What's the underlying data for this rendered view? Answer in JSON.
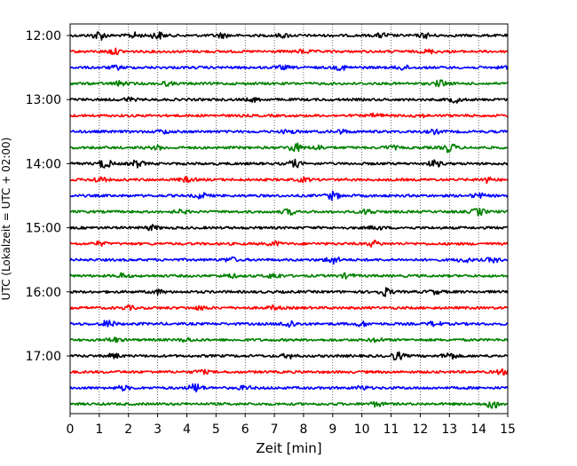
{
  "chart_data": {
    "type": "line",
    "title": "",
    "xlabel": "Zeit  [min]",
    "ylabel": "UTC (Lokalzeit = UTC + 02:00)",
    "xlim": [
      0,
      15
    ],
    "x_ticks": [
      "0",
      "1",
      "2",
      "3",
      "4",
      "5",
      "6",
      "7",
      "8",
      "9",
      "10",
      "11",
      "12",
      "13",
      "14",
      "15"
    ],
    "y_ticks": [
      "12:00",
      "13:00",
      "14:00",
      "15:00",
      "16:00",
      "17:00"
    ],
    "grid": {
      "x": true,
      "style": "dotted"
    },
    "trace_interval_min": 15,
    "color_cycle": [
      "#000000",
      "#ff0000",
      "#0000ff",
      "#008000"
    ],
    "traces": [
      {
        "start": "12:00",
        "bursts": [
          [
            1.0,
            1.0
          ],
          [
            2.2,
            0.6
          ],
          [
            3.0,
            0.8
          ],
          [
            5.2,
            0.5
          ],
          [
            7.3,
            0.4
          ],
          [
            10.7,
            0.5
          ],
          [
            12.2,
            0.5
          ]
        ]
      },
      {
        "start": "12:15",
        "bursts": [
          [
            1.5,
            0.6
          ],
          [
            8.0,
            0.4
          ],
          [
            12.3,
            0.4
          ]
        ]
      },
      {
        "start": "12:30",
        "bursts": [
          [
            1.6,
            0.4
          ],
          [
            7.3,
            0.4
          ],
          [
            9.3,
            0.5
          ],
          [
            11.4,
            0.5
          ],
          [
            15.0,
            0.4
          ]
        ]
      },
      {
        "start": "12:45",
        "bursts": [
          [
            1.7,
            0.5
          ],
          [
            3.3,
            0.4
          ],
          [
            12.7,
            0.7
          ]
        ]
      },
      {
        "start": "13:00",
        "bursts": [
          [
            2.0,
            0.4
          ],
          [
            6.3,
            0.4
          ],
          [
            13.2,
            0.6
          ]
        ]
      },
      {
        "start": "13:15",
        "bursts": [
          [
            10.5,
            0.4
          ],
          [
            12.0,
            0.3
          ]
        ]
      },
      {
        "start": "13:30",
        "bursts": [
          [
            3.2,
            0.4
          ],
          [
            7.5,
            0.4
          ],
          [
            9.3,
            0.4
          ],
          [
            12.5,
            0.4
          ]
        ]
      },
      {
        "start": "13:45",
        "bursts": [
          [
            3.0,
            0.4
          ],
          [
            7.7,
            1.0
          ],
          [
            8.5,
            0.5
          ],
          [
            11.0,
            0.4
          ],
          [
            13.0,
            1.0
          ]
        ]
      },
      {
        "start": "14:00",
        "bursts": [
          [
            1.2,
            1.0
          ],
          [
            2.3,
            0.8
          ],
          [
            7.7,
            0.8
          ],
          [
            12.5,
            0.7
          ]
        ]
      },
      {
        "start": "14:15",
        "bursts": [
          [
            1.0,
            0.6
          ],
          [
            4.0,
            0.5
          ],
          [
            8.0,
            0.4
          ],
          [
            14.3,
            0.6
          ]
        ]
      },
      {
        "start": "14:30",
        "bursts": [
          [
            4.5,
            0.6
          ],
          [
            9.0,
            0.9
          ],
          [
            14.0,
            0.5
          ]
        ]
      },
      {
        "start": "14:45",
        "bursts": [
          [
            3.8,
            0.4
          ],
          [
            7.5,
            0.6
          ],
          [
            10.2,
            0.6
          ],
          [
            14.0,
            0.8
          ]
        ]
      },
      {
        "start": "15:00",
        "bursts": [
          [
            2.8,
            0.5
          ],
          [
            10.5,
            0.4
          ]
        ]
      },
      {
        "start": "15:15",
        "bursts": [
          [
            1.0,
            0.4
          ],
          [
            7.0,
            0.5
          ],
          [
            10.4,
            0.6
          ]
        ]
      },
      {
        "start": "15:30",
        "bursts": [
          [
            5.5,
            0.5
          ],
          [
            9.0,
            0.9
          ],
          [
            13.5,
            0.5
          ],
          [
            14.5,
            0.5
          ]
        ]
      },
      {
        "start": "15:45",
        "bursts": [
          [
            1.8,
            0.5
          ],
          [
            5.5,
            0.4
          ],
          [
            7.0,
            0.6
          ],
          [
            9.5,
            0.5
          ]
        ]
      },
      {
        "start": "16:00",
        "bursts": [
          [
            3.0,
            0.5
          ],
          [
            10.8,
            0.9
          ],
          [
            12.5,
            0.4
          ]
        ]
      },
      {
        "start": "16:15",
        "bursts": [
          [
            2.0,
            0.4
          ],
          [
            4.5,
            0.4
          ],
          [
            7.0,
            0.4
          ]
        ]
      },
      {
        "start": "16:30",
        "bursts": [
          [
            1.3,
            0.8
          ],
          [
            7.5,
            0.9
          ],
          [
            10.0,
            0.5
          ],
          [
            12.5,
            0.5
          ]
        ]
      },
      {
        "start": "16:45",
        "bursts": [
          [
            1.5,
            0.5
          ],
          [
            4.0,
            0.4
          ],
          [
            10.5,
            0.4
          ]
        ]
      },
      {
        "start": "17:00",
        "bursts": [
          [
            1.5,
            0.5
          ],
          [
            7.5,
            0.5
          ],
          [
            11.2,
            0.9
          ],
          [
            13.0,
            0.8
          ]
        ]
      },
      {
        "start": "17:15",
        "bursts": [
          [
            4.5,
            0.4
          ],
          [
            14.8,
            0.5
          ]
        ]
      },
      {
        "start": "17:30",
        "bursts": [
          [
            1.8,
            0.5
          ],
          [
            4.3,
            1.0
          ],
          [
            6.0,
            0.4
          ],
          [
            10.0,
            0.4
          ]
        ]
      },
      {
        "start": "17:45",
        "bursts": [
          [
            10.5,
            0.5
          ],
          [
            14.5,
            1.0
          ]
        ]
      }
    ]
  }
}
